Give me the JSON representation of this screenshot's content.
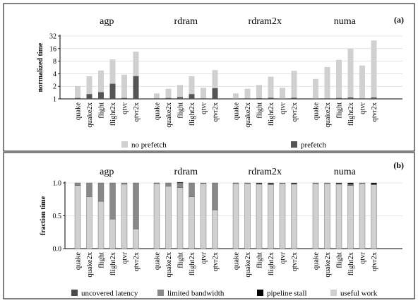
{
  "chart_data": [
    {
      "type": "bar",
      "panel_label": "(a)",
      "ylabel": "normalized time",
      "yscale": "log2",
      "ylim": [
        1,
        32
      ],
      "yticks": [
        "1",
        "2",
        "4",
        "8",
        "16",
        "32"
      ],
      "grid": true,
      "legend_position": "bottom",
      "groups": [
        "agp",
        "rdram",
        "rdram2x",
        "numa"
      ],
      "categories": [
        "quake",
        "quake2x",
        "flight",
        "flight2x",
        "qtvr",
        "qtvr2x"
      ],
      "series": [
        {
          "name": "no prefetch",
          "color": "#d0d0d0",
          "values": [
            [
              2.0,
              3.5,
              4.8,
              8.8,
              3.8,
              13.5
            ],
            [
              1.35,
              1.75,
              2.15,
              3.5,
              1.85,
              4.9
            ],
            [
              1.35,
              1.75,
              2.15,
              3.4,
              1.85,
              4.7
            ],
            [
              3.0,
              5.8,
              8.6,
              16.0,
              6.3,
              25.0
            ]
          ]
        },
        {
          "name": "prefetch",
          "color": "#555555",
          "values": [
            [
              1.05,
              1.3,
              1.45,
              2.3,
              1.05,
              3.5
            ],
            [
              1.03,
              1.05,
              1.1,
              1.3,
              1.03,
              1.8
            ],
            [
              1.02,
              1.03,
              1.04,
              1.06,
              1.02,
              1.06
            ],
            [
              1.02,
              1.03,
              1.05,
              1.08,
              1.03,
              1.08
            ]
          ]
        }
      ]
    },
    {
      "type": "bar",
      "stacked": true,
      "panel_label": "(b)",
      "ylabel": "fraction time",
      "ylim": [
        0,
        1
      ],
      "yticks": [
        "0.0",
        "0.5",
        "1.0"
      ],
      "grid": true,
      "legend_position": "bottom",
      "groups": [
        "agp",
        "rdram",
        "rdram2x",
        "numa"
      ],
      "categories": [
        "quake",
        "quake2x",
        "flight",
        "flight2x",
        "qtvr",
        "qtvr2x"
      ],
      "series": [
        {
          "name": "useful work",
          "color": "#d0d0d0",
          "values": [
            [
              0.96,
              0.79,
              0.72,
              0.45,
              0.98,
              0.3
            ],
            [
              0.99,
              0.95,
              0.93,
              0.79,
              0.99,
              0.59
            ],
            [
              0.99,
              0.99,
              0.98,
              0.97,
              0.99,
              0.98
            ],
            [
              0.99,
              0.99,
              0.98,
              0.96,
              0.99,
              0.97
            ]
          ]
        },
        {
          "name": "limited bandwidth",
          "color": "#888888",
          "values": [
            [
              0.04,
              0.21,
              0.28,
              0.55,
              0.02,
              0.7
            ],
            [
              0.01,
              0.05,
              0.07,
              0.21,
              0.01,
              0.41
            ],
            [
              0.01,
              0.01,
              0.01,
              0.02,
              0.01,
              0.01
            ],
            [
              0.01,
              0.01,
              0.01,
              0.02,
              0.01,
              0.01
            ]
          ]
        },
        {
          "name": "uncovered latency",
          "color": "#4a4a4a",
          "values": [
            [
              0.0,
              0.0,
              0.0,
              0.0,
              0.0,
              0.0
            ],
            [
              0.0,
              0.0,
              0.0,
              0.0,
              0.0,
              0.0
            ],
            [
              0.0,
              0.0,
              0.0,
              0.0,
              0.0,
              0.0
            ],
            [
              0.0,
              0.0,
              0.0,
              0.0,
              0.0,
              0.0
            ]
          ]
        },
        {
          "name": "pipeline stall",
          "color": "#000000",
          "values": [
            [
              0.0,
              0.0,
              0.0,
              0.0,
              0.0,
              0.0
            ],
            [
              0.0,
              0.0,
              0.01,
              0.0,
              0.0,
              0.0
            ],
            [
              0.0,
              0.0,
              0.01,
              0.01,
              0.0,
              0.01
            ],
            [
              0.0,
              0.0,
              0.01,
              0.02,
              0.0,
              0.02
            ]
          ]
        }
      ],
      "legend_order": [
        "uncovered latency",
        "limited bandwidth",
        "pipeline stall",
        "useful work"
      ]
    }
  ]
}
